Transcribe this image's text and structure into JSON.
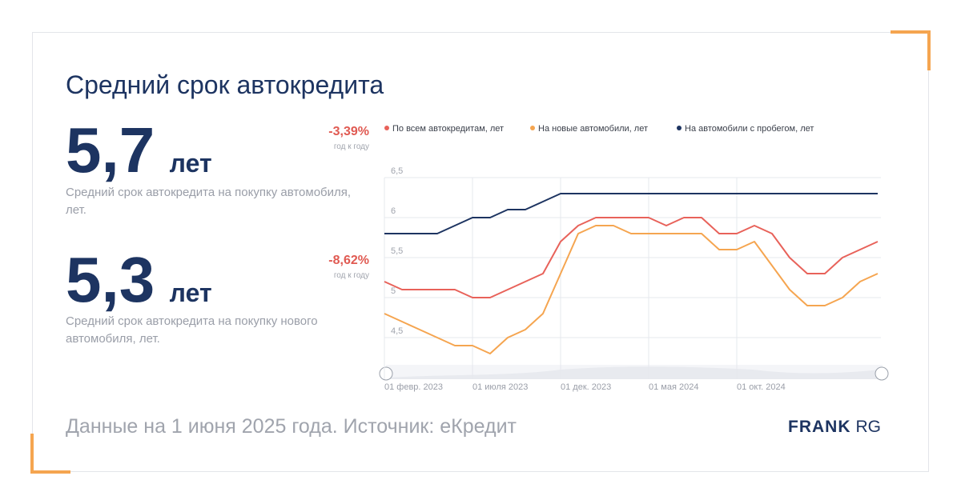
{
  "title": "Средний срок автокредита",
  "stats": [
    {
      "value": "5,7",
      "unit": "лет",
      "description": "Средний срок автокредита на покупку автомобиля, лет.",
      "change": "-3,39%",
      "change_note": "год к году"
    },
    {
      "value": "5,3",
      "unit": "лет",
      "description": "Средний срок автокредита на покупку нового автомобиля, лет.",
      "change": "-8,62%",
      "change_note": "год к году"
    }
  ],
  "footer": "Данные на 1 июня 2025 года. Источник: еКредит",
  "brand": {
    "bold": "FRANK",
    "light": "RG"
  },
  "chart_data": {
    "type": "line",
    "categories": [
      "01 февр. 2023",
      null,
      null,
      null,
      null,
      "01 июля 2023",
      null,
      null,
      null,
      null,
      "01 дек. 2023",
      null,
      null,
      null,
      null,
      "01 мая 2024",
      null,
      null,
      null,
      null,
      "01 окт. 2024",
      null,
      null,
      null,
      null,
      null,
      null,
      null,
      null
    ],
    "series": [
      {
        "name": "По всем автокредитам, лет",
        "color": "#e8625a",
        "values": [
          5.2,
          5.1,
          5.1,
          5.1,
          5.1,
          5.0,
          5.0,
          5.1,
          5.2,
          5.3,
          5.7,
          5.9,
          6.0,
          6.0,
          6.0,
          6.0,
          5.9,
          6.0,
          6.0,
          5.8,
          5.8,
          5.9,
          5.8,
          5.5,
          5.3,
          5.3,
          5.5,
          5.6,
          5.7
        ]
      },
      {
        "name": "На новые автомобили, лет",
        "color": "#f5a550",
        "values": [
          4.8,
          4.7,
          4.6,
          4.5,
          4.4,
          4.4,
          4.3,
          4.5,
          4.6,
          4.8,
          5.3,
          5.8,
          5.9,
          5.9,
          5.8,
          5.8,
          5.8,
          5.8,
          5.8,
          5.6,
          5.6,
          5.7,
          5.4,
          5.1,
          4.9,
          4.9,
          5.0,
          5.2,
          5.3
        ]
      },
      {
        "name": "На автомобили с пробегом, лет",
        "color": "#1d3461",
        "values": [
          5.8,
          5.8,
          5.8,
          5.8,
          5.9,
          6.0,
          6.0,
          6.1,
          6.1,
          6.2,
          6.3,
          6.3,
          6.3,
          6.3,
          6.3,
          6.3,
          6.3,
          6.3,
          6.3,
          6.3,
          6.3,
          6.3,
          6.3,
          6.3,
          6.3,
          6.3,
          6.3,
          6.3,
          6.3
        ]
      }
    ],
    "ylim": [
      4.2,
      6.5
    ],
    "yticks": [
      {
        "value": 4.5,
        "label": "4,5"
      },
      5,
      {
        "value": 5.5,
        "label": "5,5"
      },
      6,
      {
        "value": 6.5,
        "label": "6,5"
      }
    ],
    "grid": true
  }
}
